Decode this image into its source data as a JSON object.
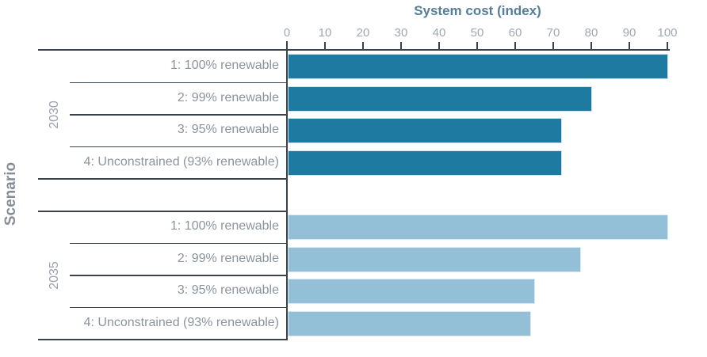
{
  "chart_data": {
    "type": "bar",
    "orientation": "horizontal",
    "title": "System cost (index)",
    "group_axis_label": "Scenario",
    "value_axis": {
      "position": "top",
      "min": 0,
      "max": 100,
      "ticks": [
        0,
        10,
        20,
        30,
        40,
        50,
        60,
        70,
        80,
        90,
        100
      ]
    },
    "categories": [
      "1: 100% renewable",
      "2: 99% renewable",
      "3: 95% renewable",
      "4: Unconstrained (93% renewable)"
    ],
    "series": [
      {
        "name": "2030",
        "color": "#1F7AA2",
        "values": [
          100,
          80,
          72,
          72
        ]
      },
      {
        "name": "2035",
        "color": "#93C0D6",
        "values": [
          100,
          77,
          65,
          64
        ]
      }
    ],
    "legend": "none",
    "layout_notes": "grouped horizontal bars, one empty spacer row between year groups, gridlines off"
  },
  "colors": {
    "bar_2030": "#1F7AA2",
    "bar_2035": "#93C0D6",
    "axis_lines": "#3A434B",
    "title_text": "#567D99",
    "tick_text": "#9FA8B2",
    "category_text": "#8C939C",
    "year_text": "#9BA2AB",
    "scenario_text": "#868D96"
  }
}
